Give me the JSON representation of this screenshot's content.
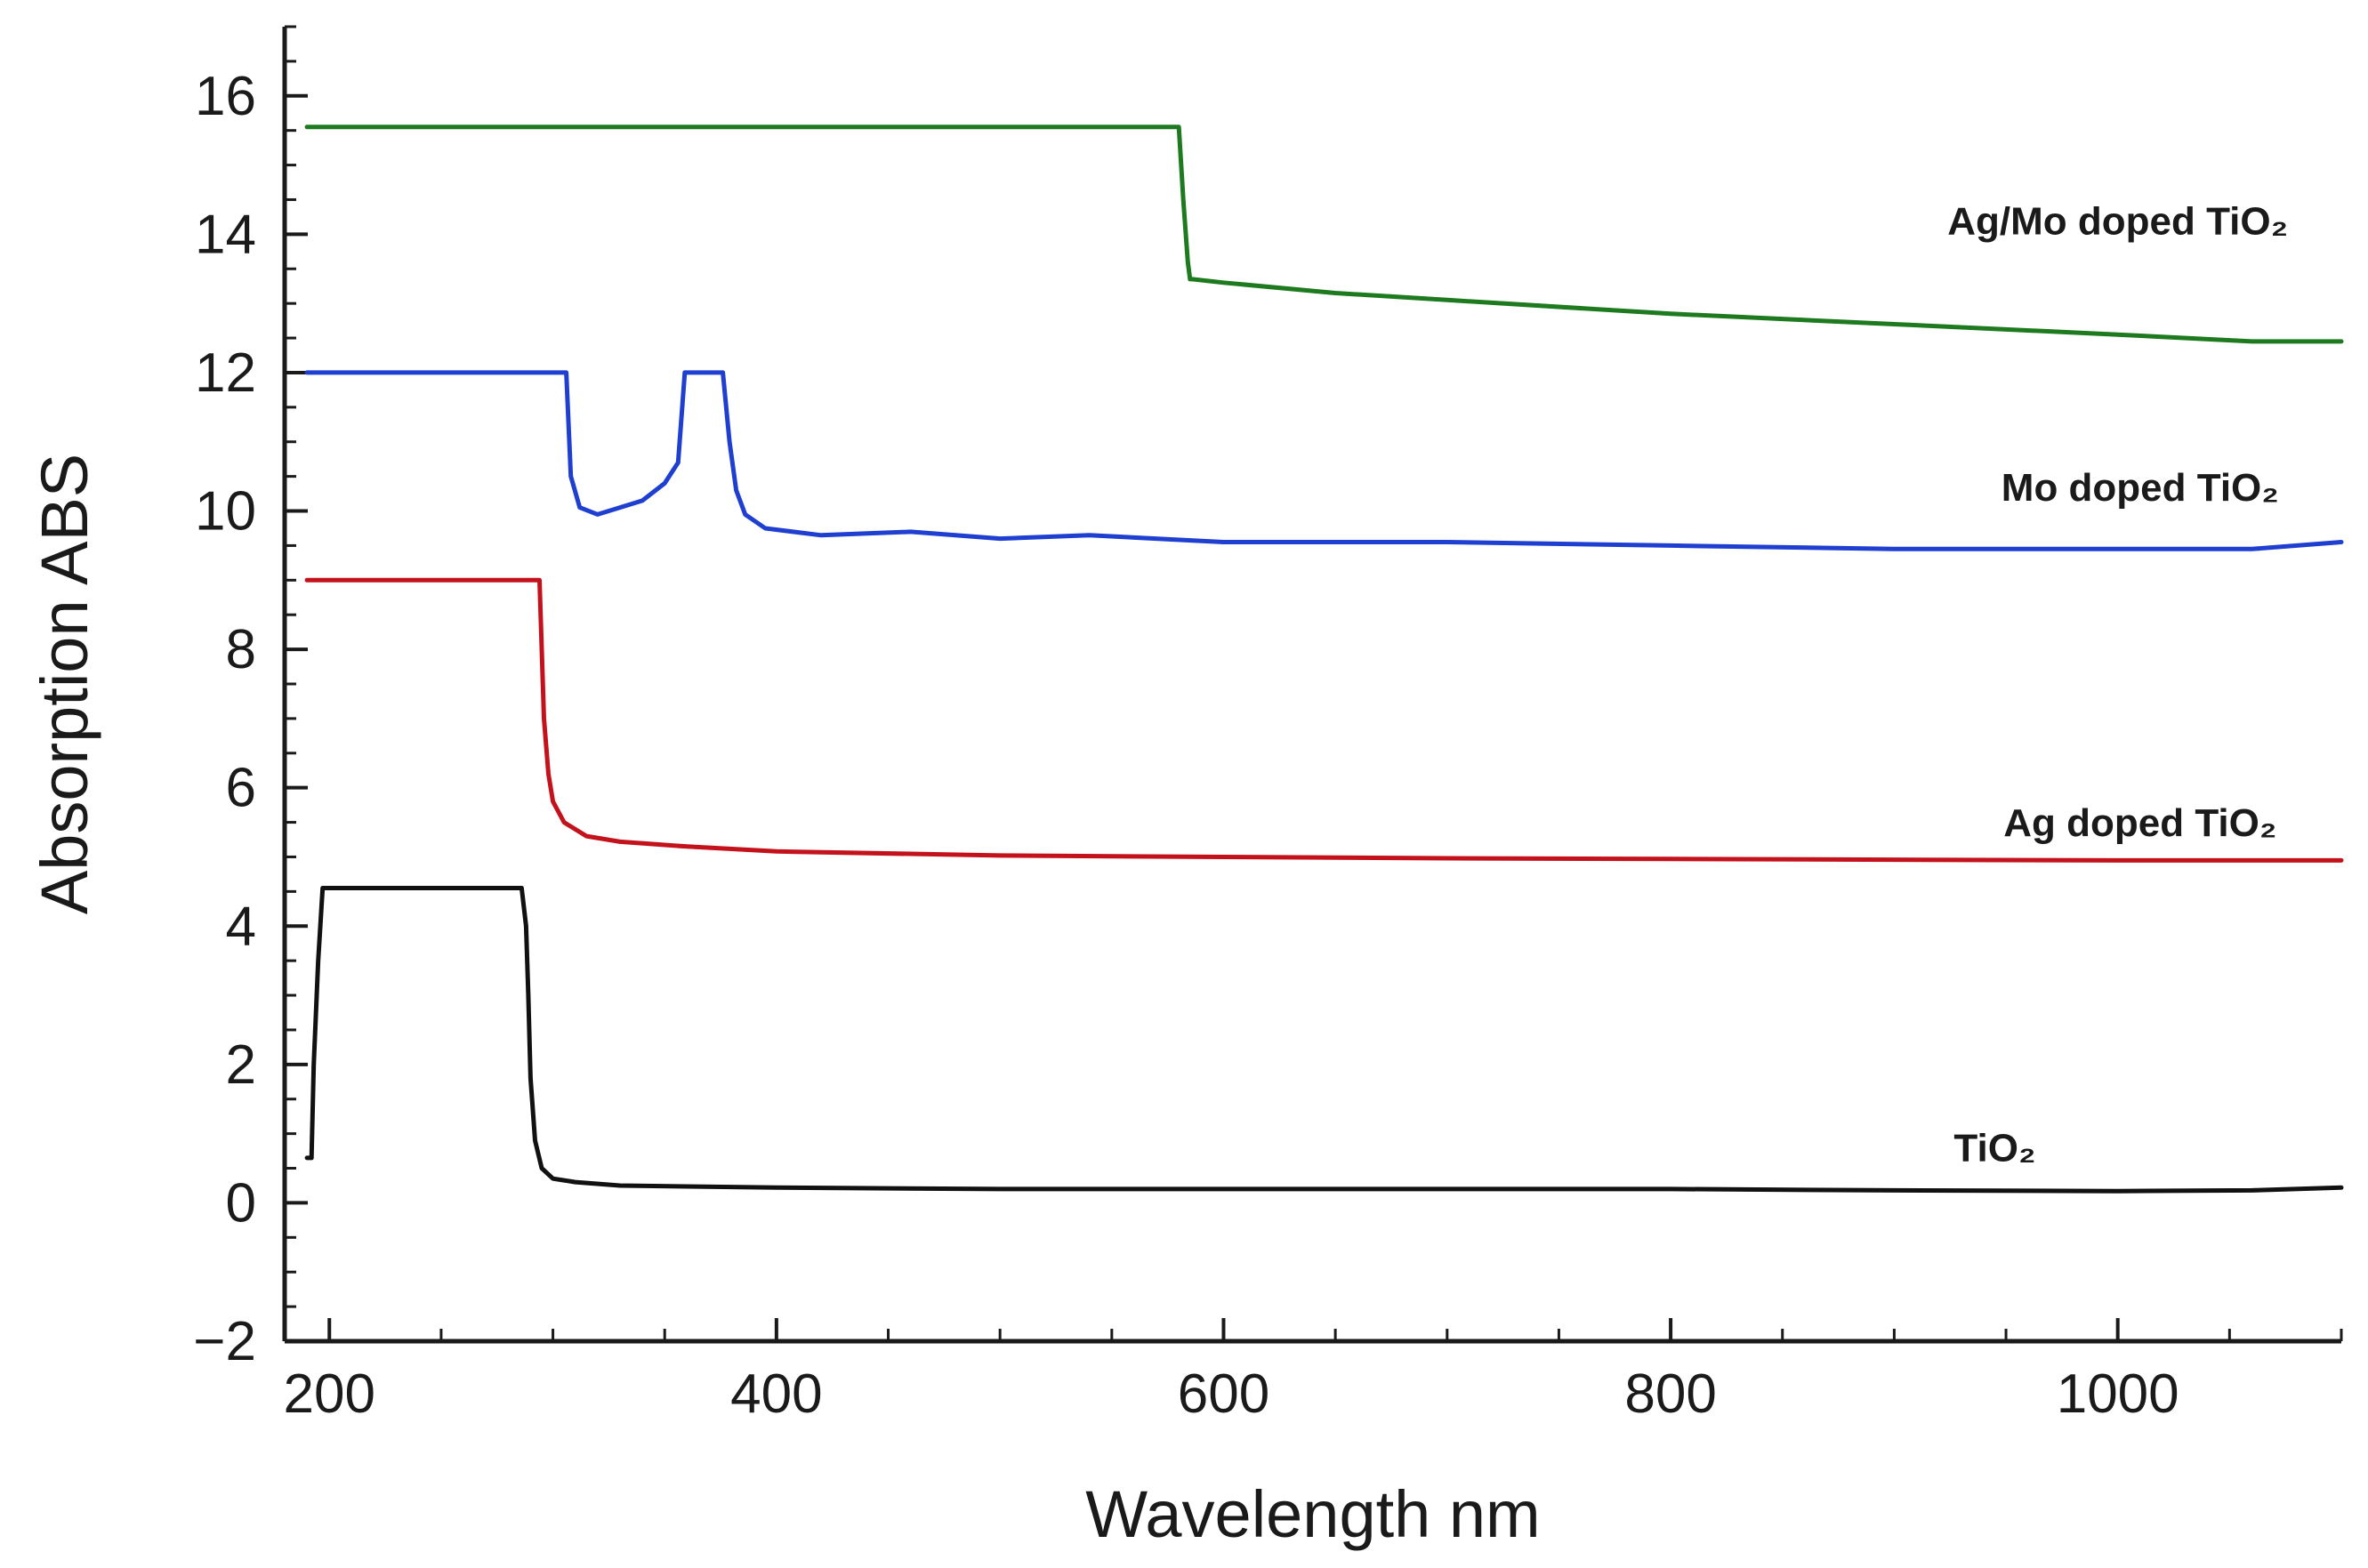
{
  "chart_data": {
    "type": "line",
    "title": "",
    "xlabel": "Wavelength nm",
    "ylabel": "Absorption ABS",
    "xlim": [
      180,
      1100
    ],
    "ylim": [
      -2,
      17
    ],
    "xticks": [
      200,
      400,
      600,
      800,
      1000
    ],
    "yticks": [
      -2,
      0,
      2,
      4,
      6,
      8,
      10,
      12,
      14,
      16
    ],
    "ytick_labels": [
      "−2",
      "0",
      "2",
      "4",
      "6",
      "8",
      "10",
      "12",
      "14",
      "16"
    ],
    "grid": false,
    "series": [
      {
        "name": "Ag/Mo doped TiO₂",
        "color": "#1e7a1e",
        "label_at": [
          1000,
          14.0
        ],
        "x": [
          190,
          560,
          580,
          582,
          584,
          585,
          586,
          600,
          650,
          700,
          800,
          900,
          1000,
          1060,
          1100
        ],
        "y": [
          15.55,
          15.55,
          15.55,
          14.5,
          13.6,
          13.35,
          13.35,
          13.3,
          13.15,
          13.05,
          12.85,
          12.7,
          12.55,
          12.45,
          12.45
        ]
      },
      {
        "name": "Mo doped TiO₂",
        "color": "#1f3fd1",
        "label_at": [
          1010,
          10.15
        ],
        "x": [
          190,
          300,
          306,
          308,
          312,
          320,
          330,
          340,
          350,
          356,
          359,
          362,
          370,
          376,
          379,
          382,
          386,
          395,
          420,
          460,
          500,
          540,
          600,
          700,
          800,
          900,
          1000,
          1060,
          1100
        ],
        "y": [
          12.0,
          12.0,
          12.0,
          10.5,
          10.05,
          9.95,
          10.05,
          10.15,
          10.4,
          10.7,
          12.0,
          12.0,
          12.0,
          12.0,
          11.0,
          10.3,
          9.95,
          9.75,
          9.65,
          9.7,
          9.6,
          9.65,
          9.55,
          9.55,
          9.5,
          9.45,
          9.45,
          9.45,
          9.55
        ]
      },
      {
        "name": "Ag doped TiO₂",
        "color": "#c4121c",
        "label_at": [
          1010,
          5.3
        ],
        "x": [
          190,
          294,
          295,
          296,
          298,
          300,
          305,
          315,
          330,
          360,
          400,
          500,
          600,
          700,
          800,
          900,
          1000,
          1100
        ],
        "y": [
          9.0,
          9.0,
          8.0,
          7.0,
          6.2,
          5.8,
          5.5,
          5.3,
          5.22,
          5.15,
          5.08,
          5.02,
          5.0,
          4.98,
          4.97,
          4.96,
          4.95,
          4.95
        ]
      },
      {
        "name": "TiO₂",
        "color": "#111111",
        "label_at": [
          945,
          0.6
        ],
        "x": [
          190,
          192,
          193,
          195,
          197,
          286,
          288,
          289,
          290,
          292,
          295,
          300,
          310,
          330,
          400,
          500,
          600,
          700,
          800,
          900,
          1000,
          1060,
          1100
        ],
        "y": [
          0.65,
          0.65,
          2.0,
          3.5,
          4.55,
          4.55,
          4.0,
          3.0,
          1.8,
          0.9,
          0.5,
          0.35,
          0.3,
          0.25,
          0.22,
          0.2,
          0.2,
          0.2,
          0.2,
          0.18,
          0.17,
          0.18,
          0.22
        ]
      }
    ]
  }
}
